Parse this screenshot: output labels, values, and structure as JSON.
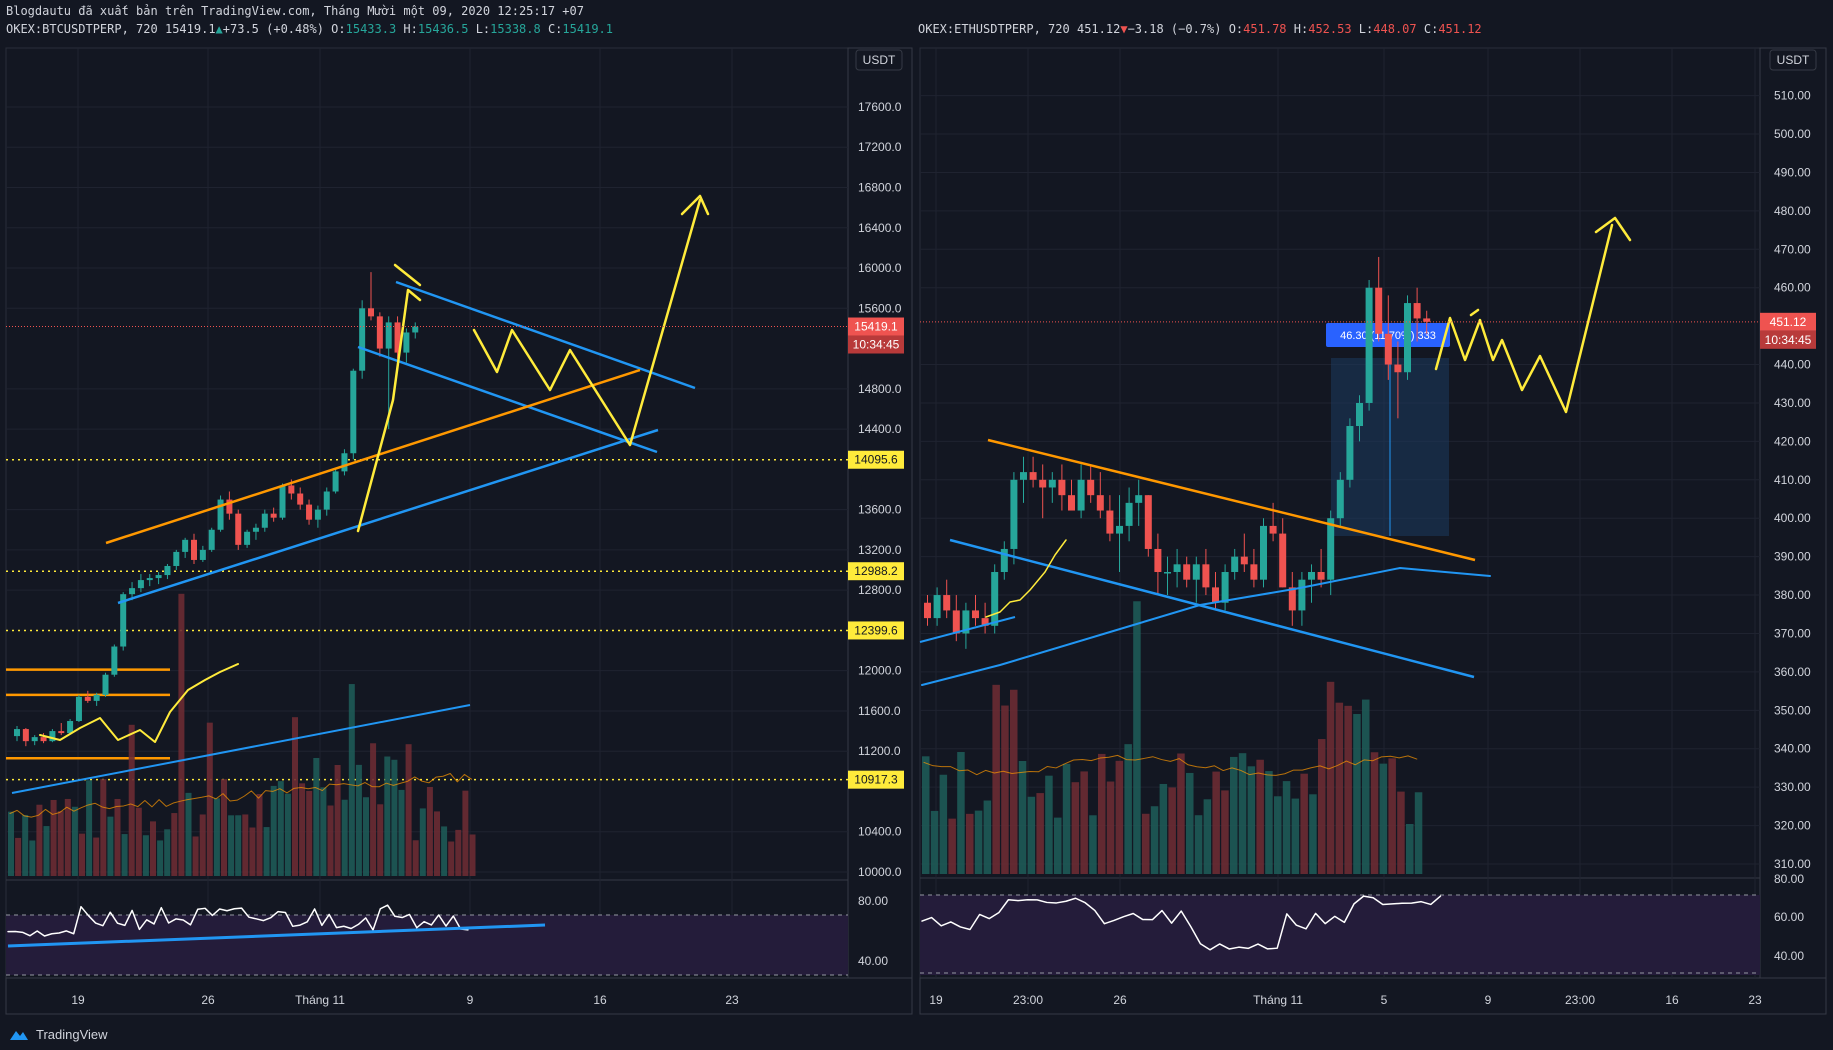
{
  "published_line": "Blogdautu đã xuất bản trên TradingView.com, Tháng Mười một 09, 2020 12:25:17 +07",
  "footer": {
    "brand": "TradingView"
  },
  "colors": {
    "up": "#26a69a",
    "down": "#ef5350",
    "yellow": "#ffeb3b",
    "orange": "#ff9800",
    "blue": "#2196f3",
    "background": "#131722"
  },
  "chart_data": [
    {
      "type": "candlestick",
      "symbol": "OKEX:BTCUSDTPERP",
      "interval": "720",
      "last": "15419.1",
      "change": "+73.5 (+0.48%)",
      "change_dir": "up",
      "ohlc": {
        "O": "15433.3",
        "H": "15436.5",
        "L": "15338.8",
        "C": "15419.1"
      },
      "currency": "USDT",
      "y_ticks": [
        "17600.0",
        "17200.0",
        "16800.0",
        "16400.0",
        "16000.0",
        "15600.0",
        "14800.0",
        "14400.0",
        "13600.0",
        "13200.0",
        "12800.0",
        "12000.0",
        "11600.0",
        "11200.0",
        "10400.0",
        "10000.0"
      ],
      "price_tag": "15419.1",
      "countdown": "10:34:45",
      "level_tags": [
        "14095.6",
        "12988.2",
        "12399.6",
        "10917.3"
      ],
      "x_ticks": [
        "19",
        "26",
        "Tháng 11",
        "9",
        "16",
        "23"
      ],
      "rsi_ticks": [
        "80.00",
        "40.00"
      ]
    },
    {
      "type": "candlestick",
      "symbol": "OKEX:ETHUSDTPERP",
      "interval": "720",
      "last": "451.12",
      "change": "−3.18 (−0.7%)",
      "change_dir": "down",
      "ohlc": {
        "O": "451.78",
        "H": "452.53",
        "L": "448.07",
        "C": "451.12"
      },
      "currency": "USDT",
      "y_ticks": [
        "510.00",
        "500.00",
        "490.00",
        "480.00",
        "470.00",
        "460.00",
        "440.00",
        "430.00",
        "420.00",
        "410.00",
        "400.00",
        "390.00",
        "380.00",
        "370.00",
        "360.00",
        "350.00",
        "340.00",
        "330.00",
        "320.00",
        "310.00"
      ],
      "price_tag": "451.12",
      "countdown": "10:34:45",
      "measure_label": "46.30 (11.70%) 333",
      "x_ticks": [
        "19",
        "23:00",
        "26",
        "Tháng 11",
        "5",
        "9",
        "23:00",
        "16",
        "23"
      ],
      "rsi_ticks": [
        "80.00",
        "60.00",
        "40.00"
      ]
    }
  ]
}
